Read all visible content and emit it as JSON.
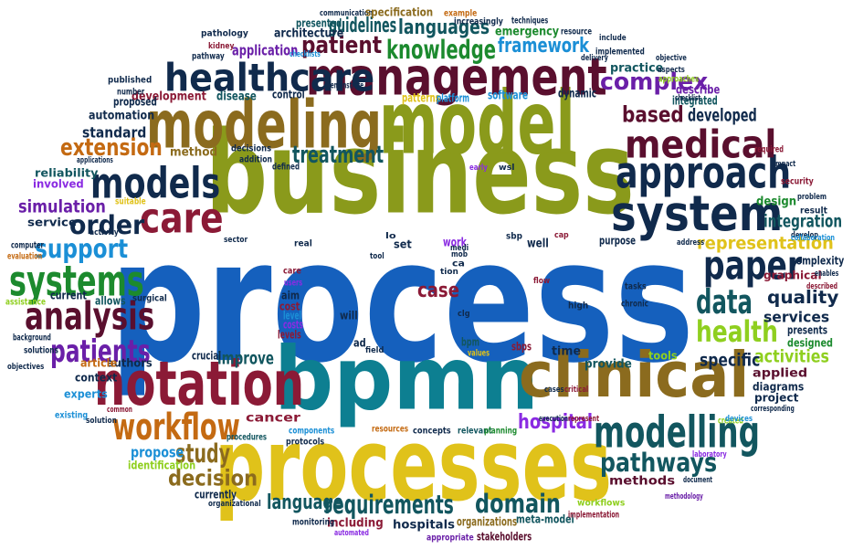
{
  "palette": {
    "blue": "#1560bd",
    "olive": "#8a9a1b",
    "teal": "#0d7f91",
    "navy": "#102a4c",
    "maroon": "#5a0f2e",
    "crimson": "#8b1a36",
    "gold": "#e0c21a",
    "brown": "#8b6b1e",
    "purple": "#6a1fa8",
    "green": "#1c8a2e",
    "lime": "#8fcf1f",
    "orange": "#c46a12",
    "darkteal": "#12565f",
    "violet": "#8a2be2",
    "sky": "#1b8fd6"
  },
  "words": [
    {
      "text": "process",
      "color": "blue"
    },
    {
      "text": "business",
      "color": "olive"
    },
    {
      "text": "bpmn",
      "color": "teal"
    },
    {
      "text": "model",
      "color": "olive"
    },
    {
      "text": "processes",
      "color": "gold"
    },
    {
      "text": "modeling",
      "color": "brown"
    },
    {
      "text": "clinical",
      "color": "brown"
    },
    {
      "text": "management",
      "color": "maroon"
    },
    {
      "text": "notation",
      "color": "crimson"
    },
    {
      "text": "healthcare",
      "color": "navy"
    },
    {
      "text": "system",
      "color": "navy"
    },
    {
      "text": "approach",
      "color": "navy"
    },
    {
      "text": "care",
      "color": "crimson"
    },
    {
      "text": "models",
      "color": "navy"
    },
    {
      "text": "medical",
      "color": "maroon"
    },
    {
      "text": "systems",
      "color": "green"
    },
    {
      "text": "modelling",
      "color": "darkteal"
    },
    {
      "text": "workflow",
      "color": "orange"
    },
    {
      "text": "analysis",
      "color": "maroon"
    },
    {
      "text": "paper",
      "color": "navy"
    },
    {
      "text": "knowledge",
      "color": "green"
    },
    {
      "text": "data",
      "color": "darkteal"
    },
    {
      "text": "health",
      "color": "lime"
    },
    {
      "text": "patients",
      "color": "purple"
    },
    {
      "text": "requirements",
      "color": "darkteal"
    },
    {
      "text": "patient",
      "color": "maroon"
    },
    {
      "text": "treatment",
      "color": "darkteal"
    },
    {
      "text": "framework",
      "color": "sky"
    },
    {
      "text": "complex",
      "color": "purple"
    },
    {
      "text": "order",
      "color": "navy"
    },
    {
      "text": "support",
      "color": "sky"
    },
    {
      "text": "pathways",
      "color": "darkteal"
    },
    {
      "text": "study",
      "color": "brown"
    },
    {
      "text": "hospital",
      "color": "violet"
    },
    {
      "text": "domain",
      "color": "darkteal"
    },
    {
      "text": "decision",
      "color": "brown"
    },
    {
      "text": "language",
      "color": "darkteal"
    },
    {
      "text": "languages",
      "color": "darkteal"
    },
    {
      "text": "guidelines",
      "color": "darkteal"
    },
    {
      "text": "representation",
      "color": "gold"
    },
    {
      "text": "quality",
      "color": "navy"
    },
    {
      "text": "extension",
      "color": "orange"
    },
    {
      "text": "simulation",
      "color": "purple"
    },
    {
      "text": "integration",
      "color": "darkteal"
    },
    {
      "text": "case",
      "color": "crimson"
    },
    {
      "text": "based",
      "color": "maroon"
    },
    {
      "text": "developed",
      "color": "navy"
    },
    {
      "text": "activities",
      "color": "lime"
    },
    {
      "text": "services",
      "color": "navy"
    },
    {
      "text": "specific",
      "color": "navy"
    },
    {
      "text": "improve",
      "color": "darkteal"
    },
    {
      "text": "propose",
      "color": "sky"
    },
    {
      "text": "application",
      "color": "purple"
    },
    {
      "text": "architecture",
      "color": "navy"
    },
    {
      "text": "standard",
      "color": "navy"
    },
    {
      "text": "automation",
      "color": "navy"
    },
    {
      "text": "development",
      "color": "crimson"
    },
    {
      "text": "method",
      "color": "brown"
    },
    {
      "text": "practice",
      "color": "darkteal"
    },
    {
      "text": "emergency",
      "color": "green"
    },
    {
      "text": "cancer",
      "color": "crimson"
    },
    {
      "text": "methods",
      "color": "maroon"
    },
    {
      "text": "hospitals",
      "color": "navy"
    },
    {
      "text": "organizations",
      "color": "brown"
    },
    {
      "text": "time",
      "color": "navy"
    },
    {
      "text": "provide",
      "color": "darkteal"
    },
    {
      "text": "applied",
      "color": "maroon"
    },
    {
      "text": "design",
      "color": "green"
    },
    {
      "text": "diagrams",
      "color": "navy"
    },
    {
      "text": "project",
      "color": "navy"
    },
    {
      "text": "tools",
      "color": "lime"
    },
    {
      "text": "presents",
      "color": "navy"
    },
    {
      "text": "designed",
      "color": "green"
    },
    {
      "text": "graphical",
      "color": "crimson"
    },
    {
      "text": "complexity",
      "color": "navy"
    },
    {
      "text": "reliability",
      "color": "darkteal"
    },
    {
      "text": "involved",
      "color": "violet"
    },
    {
      "text": "service",
      "color": "navy"
    },
    {
      "text": "suitable",
      "color": "gold"
    },
    {
      "text": "current",
      "color": "navy"
    },
    {
      "text": "allows",
      "color": "darkteal"
    },
    {
      "text": "authors",
      "color": "navy"
    },
    {
      "text": "article",
      "color": "orange"
    },
    {
      "text": "context",
      "color": "navy"
    },
    {
      "text": "experts",
      "color": "sky"
    },
    {
      "text": "crucial",
      "color": "navy"
    },
    {
      "text": "identification",
      "color": "lime"
    },
    {
      "text": "currently",
      "color": "navy"
    },
    {
      "text": "including",
      "color": "crimson"
    },
    {
      "text": "meta-model",
      "color": "darkteal"
    },
    {
      "text": "workflows",
      "color": "lime"
    },
    {
      "text": "implementation",
      "color": "crimson"
    },
    {
      "text": "monitoring",
      "color": "navy"
    },
    {
      "text": "appropriate",
      "color": "purple"
    },
    {
      "text": "stakeholders",
      "color": "maroon"
    },
    {
      "text": "automated",
      "color": "violet"
    },
    {
      "text": "concepts",
      "color": "navy"
    },
    {
      "text": "relevant",
      "color": "darkteal"
    },
    {
      "text": "planning",
      "color": "green"
    },
    {
      "text": "resources",
      "color": "orange"
    },
    {
      "text": "components",
      "color": "sky"
    },
    {
      "text": "protocols",
      "color": "navy"
    },
    {
      "text": "procedures",
      "color": "darkteal"
    },
    {
      "text": "execution",
      "color": "navy"
    },
    {
      "text": "represent",
      "color": "crimson"
    },
    {
      "text": "laboratory",
      "color": "violet"
    },
    {
      "text": "document",
      "color": "navy"
    },
    {
      "text": "methodology",
      "color": "purple"
    },
    {
      "text": "created",
      "color": "lime"
    },
    {
      "text": "devices",
      "color": "sky"
    },
    {
      "text": "corresponding",
      "color": "navy"
    },
    {
      "text": "software",
      "color": "sky"
    },
    {
      "text": "patterns",
      "color": "gold"
    },
    {
      "text": "platform",
      "color": "sky"
    },
    {
      "text": "demonstrate",
      "color": "navy"
    },
    {
      "text": "integrated",
      "color": "darkteal"
    },
    {
      "text": "describe",
      "color": "purple"
    },
    {
      "text": "dynamic",
      "color": "navy"
    },
    {
      "text": "disease",
      "color": "darkteal"
    },
    {
      "text": "control",
      "color": "navy"
    },
    {
      "text": "proposed",
      "color": "navy"
    },
    {
      "text": "number",
      "color": "navy"
    },
    {
      "text": "published",
      "color": "navy"
    },
    {
      "text": "pathway",
      "color": "navy"
    },
    {
      "text": "pathology",
      "color": "navy"
    },
    {
      "text": "presented",
      "color": "darkteal"
    },
    {
      "text": "communication",
      "color": "navy"
    },
    {
      "text": "specification",
      "color": "brown"
    },
    {
      "text": "example",
      "color": "orange"
    },
    {
      "text": "increasingly",
      "color": "navy"
    },
    {
      "text": "techniques",
      "color": "navy"
    },
    {
      "text": "resource",
      "color": "navy"
    },
    {
      "text": "implemented",
      "color": "navy"
    },
    {
      "text": "include",
      "color": "navy"
    },
    {
      "text": "objective",
      "color": "navy"
    },
    {
      "text": "aspects",
      "color": "navy"
    },
    {
      "text": "approaches",
      "color": "lime"
    },
    {
      "text": "checklist",
      "color": "navy"
    },
    {
      "text": "required",
      "color": "crimson"
    },
    {
      "text": "impact",
      "color": "navy"
    },
    {
      "text": "security",
      "color": "crimson"
    },
    {
      "text": "problem",
      "color": "navy"
    },
    {
      "text": "result",
      "color": "navy"
    },
    {
      "text": "develop",
      "color": "navy"
    },
    {
      "text": "address",
      "color": "navy"
    },
    {
      "text": "collaboration",
      "color": "sky"
    },
    {
      "text": "enables",
      "color": "navy"
    },
    {
      "text": "described",
      "color": "crimson"
    },
    {
      "text": "decisions",
      "color": "navy"
    },
    {
      "text": "addition",
      "color": "navy"
    },
    {
      "text": "defined",
      "color": "navy"
    },
    {
      "text": "applications",
      "color": "navy"
    },
    {
      "text": "activity",
      "color": "navy"
    },
    {
      "text": "computer",
      "color": "navy"
    },
    {
      "text": "evaluation",
      "color": "orange"
    },
    {
      "text": "assistance",
      "color": "lime"
    },
    {
      "text": "background",
      "color": "navy"
    },
    {
      "text": "solutions",
      "color": "navy"
    },
    {
      "text": "objectives",
      "color": "navy"
    },
    {
      "text": "existing",
      "color": "sky"
    },
    {
      "text": "solution",
      "color": "navy"
    },
    {
      "text": "common",
      "color": "crimson"
    },
    {
      "text": "organizational",
      "color": "navy"
    },
    {
      "text": "users",
      "color": "violet"
    },
    {
      "text": "aim",
      "color": "navy"
    },
    {
      "text": "cost",
      "color": "crimson"
    },
    {
      "text": "level",
      "color": "sky"
    },
    {
      "text": "costs",
      "color": "violet"
    },
    {
      "text": "levels",
      "color": "crimson"
    },
    {
      "text": "will",
      "color": "navy"
    },
    {
      "text": "ad",
      "color": "navy"
    },
    {
      "text": "bpm",
      "color": "darkteal"
    },
    {
      "text": "sbps",
      "color": "crimson"
    },
    {
      "text": "values",
      "color": "gold"
    },
    {
      "text": "high",
      "color": "navy"
    },
    {
      "text": "chronic",
      "color": "navy"
    },
    {
      "text": "tasks",
      "color": "navy"
    },
    {
      "text": "set",
      "color": "navy"
    },
    {
      "text": "work",
      "color": "violet"
    },
    {
      "text": "well",
      "color": "navy"
    },
    {
      "text": "purpose",
      "color": "navy"
    },
    {
      "text": "real",
      "color": "navy"
    },
    {
      "text": "sector",
      "color": "navy"
    },
    {
      "text": "surgical",
      "color": "navy"
    },
    {
      "text": "kidney",
      "color": "crimson"
    },
    {
      "text": "delivery",
      "color": "navy"
    },
    {
      "text": "checklists",
      "color": "sky"
    },
    {
      "text": "flow",
      "color": "crimson"
    },
    {
      "text": "cases",
      "color": "navy"
    },
    {
      "text": "critical",
      "color": "crimson"
    },
    {
      "text": "wsl",
      "color": "navy"
    },
    {
      "text": "early",
      "color": "violet"
    },
    {
      "text": "sbp",
      "color": "navy"
    },
    {
      "text": "lo",
      "color": "navy"
    },
    {
      "text": "tool",
      "color": "navy"
    },
    {
      "text": "ca",
      "color": "navy"
    },
    {
      "text": "clg",
      "color": "navy"
    },
    {
      "text": "cap",
      "color": "crimson"
    },
    {
      "text": "field",
      "color": "navy"
    },
    {
      "text": "mob",
      "color": "navy"
    },
    {
      "text": "medi",
      "color": "navy"
    },
    {
      "text": "care",
      "color": "crimson"
    },
    {
      "text": "tion",
      "color": "navy"
    }
  ]
}
